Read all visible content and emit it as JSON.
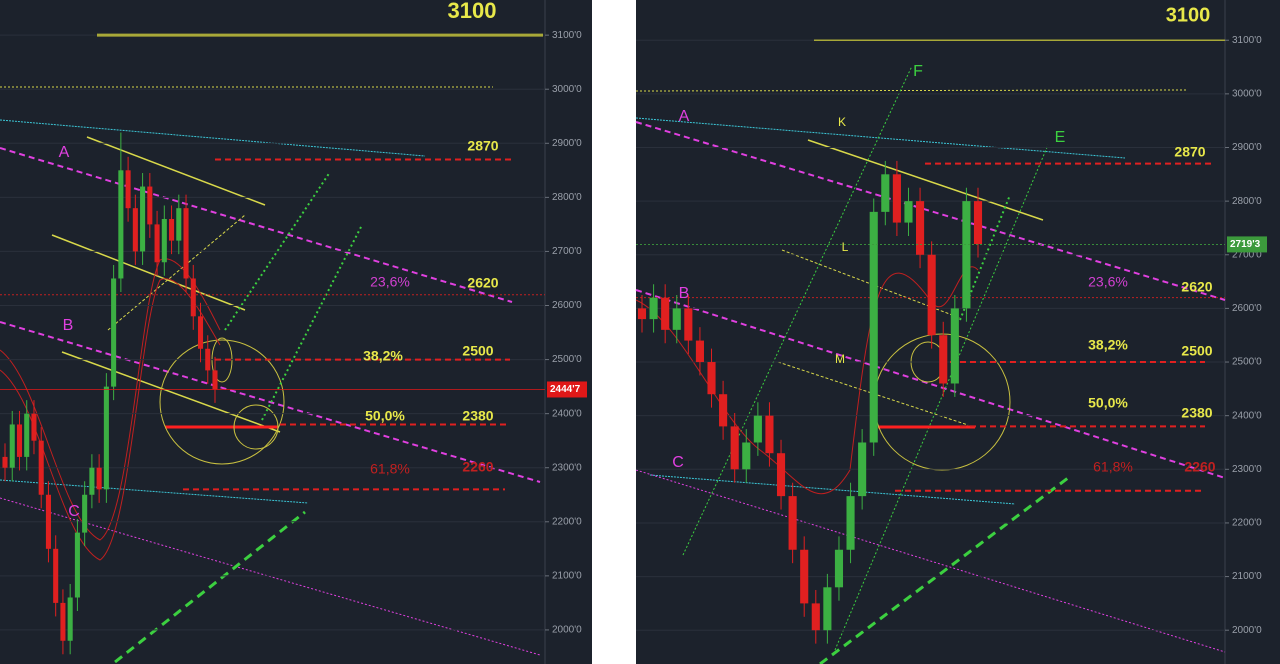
{
  "chart_data": [
    {
      "type": "candlestick",
      "ylim": [
        1937,
        3165
      ],
      "yticks": [
        {
          "value": 2000,
          "label": "2000'0"
        },
        {
          "value": 2100,
          "label": "2100'0"
        },
        {
          "value": 2200,
          "label": "2200'0"
        },
        {
          "value": 2300,
          "label": "2300'0"
        },
        {
          "value": 2400,
          "label": "2400'0"
        },
        {
          "value": 2500,
          "label": "2500'0"
        },
        {
          "value": 2600,
          "label": "2600'0"
        },
        {
          "value": 2700,
          "label": "2700'0"
        },
        {
          "value": 2800,
          "label": "2800'0"
        },
        {
          "value": 2900,
          "label": "2900'0"
        },
        {
          "value": 3000,
          "label": "3000'0"
        },
        {
          "value": 3100,
          "label": "3100'0"
        }
      ],
      "levels": [
        3100,
        2870,
        2620,
        2500,
        2380,
        2260
      ],
      "fib_labels": [
        "23,6%",
        "38,2%",
        "50,0%",
        "61,8%"
      ],
      "wave_labels": [
        "A",
        "B",
        "C"
      ],
      "current_price": {
        "value": 2444.7,
        "label": "2444'7"
      },
      "open": [
        2320,
        2300,
        2380,
        2320,
        2400,
        2350,
        2250,
        2150,
        2050,
        1980,
        2060,
        2180,
        2250,
        2300,
        2260,
        2450,
        2650,
        2850,
        2780,
        2700,
        2820,
        2750,
        2680,
        2760,
        2720,
        2780,
        2650,
        2580,
        2520,
        2480
      ],
      "high": [
        2345,
        2405,
        2405,
        2425,
        2425,
        2375,
        2275,
        2175,
        2075,
        2085,
        2205,
        2275,
        2325,
        2325,
        2475,
        2675,
        2920,
        2875,
        2805,
        2845,
        2845,
        2775,
        2785,
        2785,
        2805,
        2805,
        2675,
        2605,
        2545,
        2505
      ],
      "low": [
        2275,
        2275,
        2295,
        2295,
        2325,
        2225,
        2125,
        2025,
        1955,
        1955,
        2035,
        2155,
        2225,
        2235,
        2235,
        2425,
        2625,
        2755,
        2675,
        2675,
        2725,
        2655,
        2655,
        2695,
        2695,
        2625,
        2555,
        2495,
        2455,
        2420
      ],
      "close": [
        2300,
        2380,
        2320,
        2400,
        2350,
        2250,
        2150,
        2050,
        1980,
        2060,
        2180,
        2250,
        2300,
        2260,
        2450,
        2650,
        2850,
        2780,
        2700,
        2820,
        2750,
        2680,
        2760,
        2720,
        2780,
        2650,
        2580,
        2520,
        2480,
        2445
      ]
    },
    {
      "type": "candlestick",
      "ylim": [
        1937,
        3175
      ],
      "yticks": [
        {
          "value": 2000,
          "label": "2000'0"
        },
        {
          "value": 2100,
          "label": "2100'0"
        },
        {
          "value": 2200,
          "label": "2200'0"
        },
        {
          "value": 2300,
          "label": "2300'0"
        },
        {
          "value": 2400,
          "label": "2400'0"
        },
        {
          "value": 2500,
          "label": "2500'0"
        },
        {
          "value": 2600,
          "label": "2600'0"
        },
        {
          "value": 2700,
          "label": "2700'0"
        },
        {
          "value": 2800,
          "label": "2800'0"
        },
        {
          "value": 2900,
          "label": "2900'0"
        },
        {
          "value": 3000,
          "label": "3000'0"
        },
        {
          "value": 3100,
          "label": "3100'0"
        }
      ],
      "levels": [
        3100,
        2870,
        2620,
        2500,
        2380,
        2260
      ],
      "fib_labels": [
        "23,6%",
        "38,2%",
        "50,0%",
        "61,8%"
      ],
      "wave_labels": [
        "A",
        "B",
        "C",
        "F",
        "E",
        "K",
        "L",
        "M"
      ],
      "current_price": {
        "value": 2719.3,
        "label": "2719'3"
      },
      "open": [
        2600,
        2580,
        2620,
        2560,
        2600,
        2540,
        2500,
        2440,
        2380,
        2300,
        2350,
        2400,
        2330,
        2250,
        2150,
        2050,
        2000,
        2080,
        2150,
        2250,
        2350,
        2780,
        2850,
        2760,
        2800,
        2700,
        2550,
        2460,
        2600,
        2800
      ],
      "high": [
        2625,
        2645,
        2645,
        2625,
        2625,
        2565,
        2525,
        2465,
        2405,
        2375,
        2425,
        2425,
        2355,
        2275,
        2175,
        2075,
        2105,
        2175,
        2275,
        2375,
        2805,
        2875,
        2875,
        2825,
        2825,
        2725,
        2575,
        2625,
        2825,
        2825
      ],
      "low": [
        2555,
        2555,
        2535,
        2535,
        2515,
        2475,
        2415,
        2355,
        2275,
        2275,
        2325,
        2305,
        2225,
        2125,
        2025,
        1975,
        1975,
        2055,
        2125,
        2225,
        2325,
        2755,
        2735,
        2735,
        2675,
        2525,
        2435,
        2435,
        2575,
        2695
      ],
      "close": [
        2580,
        2620,
        2560,
        2600,
        2540,
        2500,
        2440,
        2380,
        2300,
        2350,
        2400,
        2330,
        2250,
        2150,
        2050,
        2000,
        2080,
        2150,
        2250,
        2350,
        2780,
        2850,
        2760,
        2800,
        2700,
        2550,
        2460,
        2600,
        2800,
        2720
      ]
    }
  ]
}
